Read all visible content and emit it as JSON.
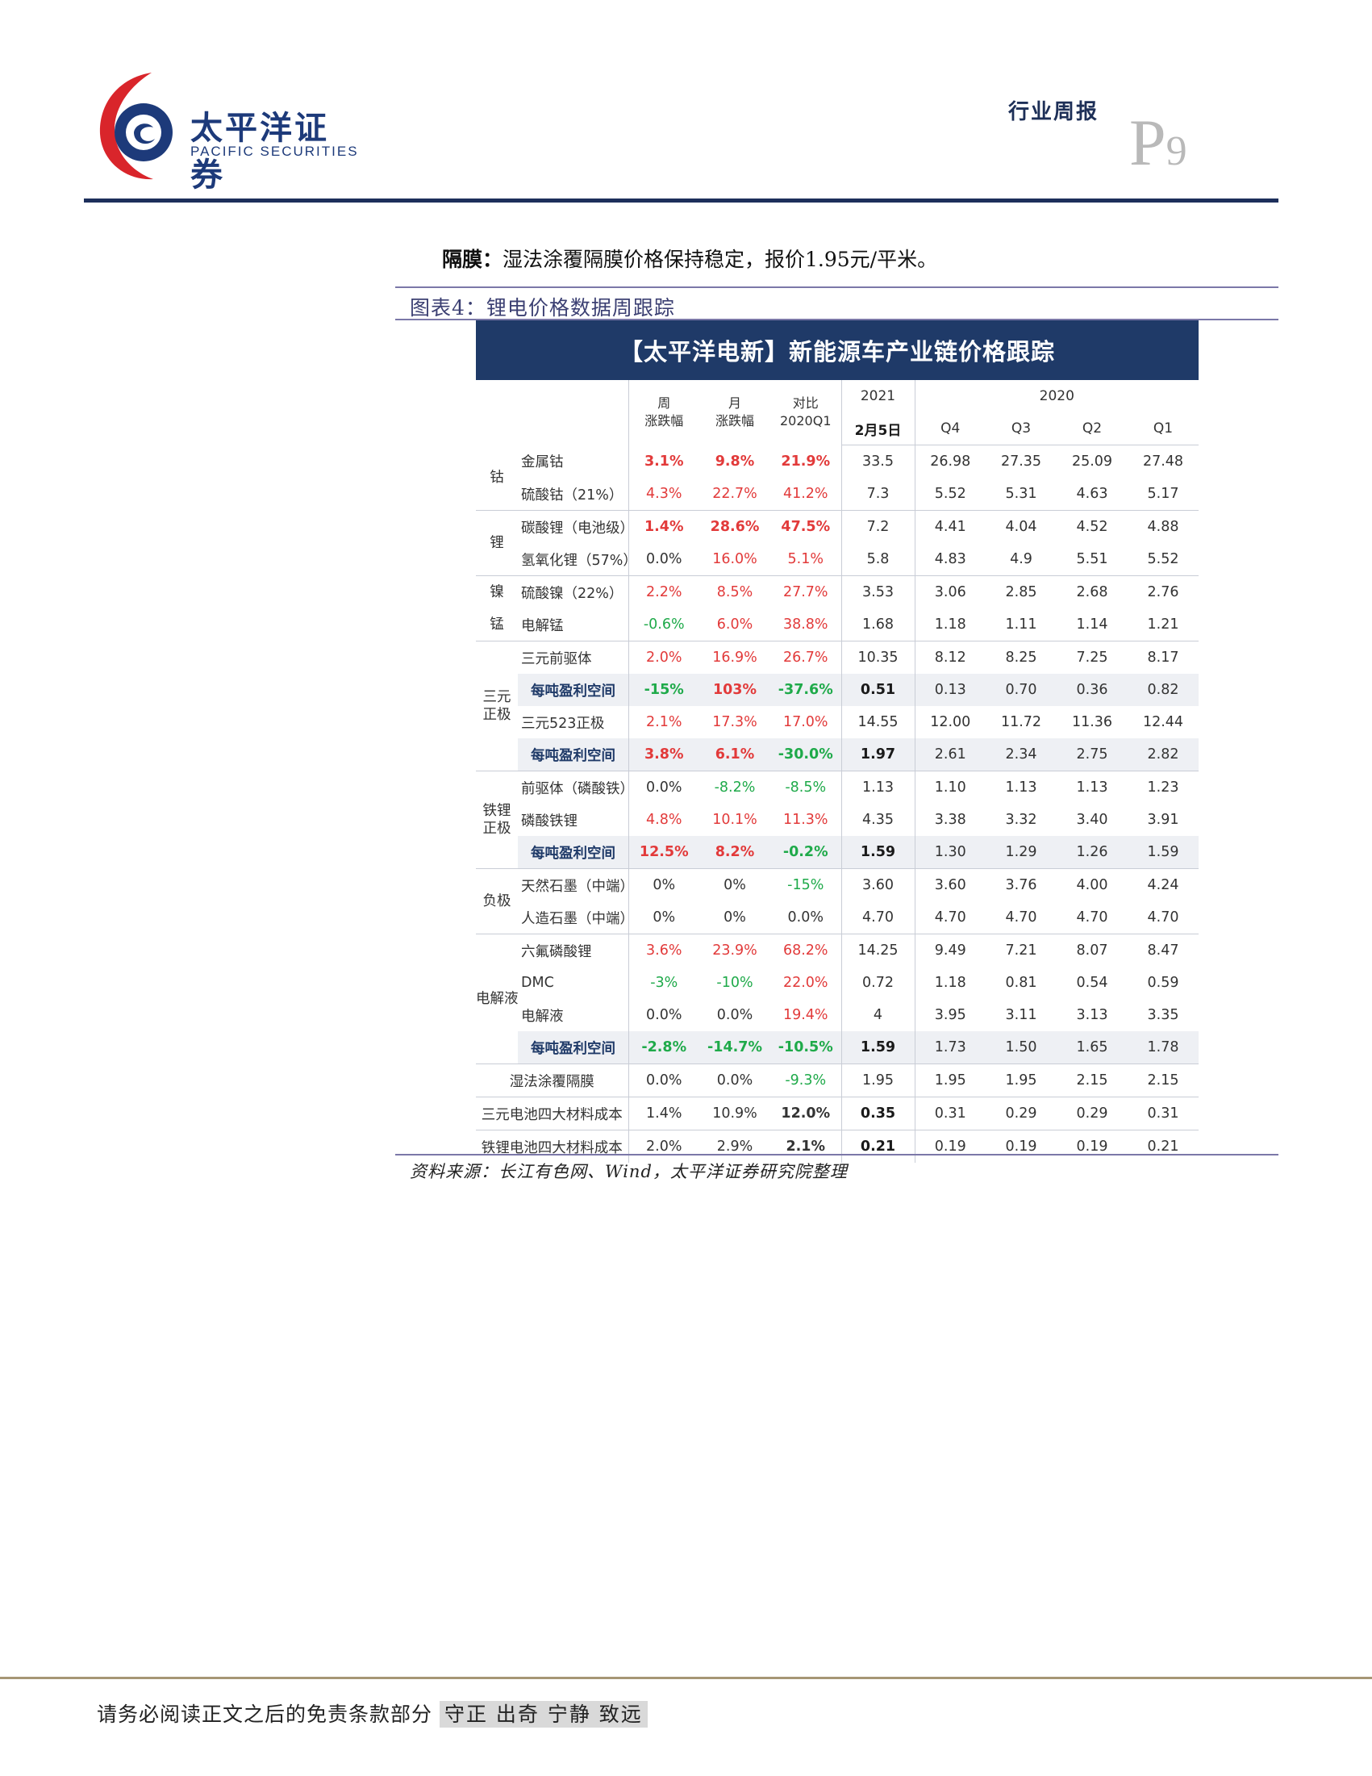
{
  "header": {
    "logo_cn": "太平洋证券",
    "logo_en": "PACIFIC SECURITIES",
    "report_type": "行业周报",
    "page_letter": "P",
    "page_number": "9"
  },
  "body": {
    "para_label": "隔膜：",
    "para_text": "湿法涂覆隔膜价格保持稳定，报价1.95元/平米。",
    "figure_title": "图表4：锂电价格数据周跟踪",
    "source": "资料来源：长江有色网、Wind，太平洋证券研究院整理"
  },
  "table": {
    "title": "【太平洋电新】新能源车产业链价格跟踪",
    "headers": {
      "week": "周\n涨跌幅",
      "month": "月\n涨跌幅",
      "vs": "对比\n2020Q1",
      "year2021": "2021",
      "date": "2月5日",
      "year2020": "2020",
      "q4": "Q4",
      "q3": "Q3",
      "q2": "Q2",
      "q1": "Q1"
    },
    "categories": {
      "cobalt": "钴",
      "lithium": "锂",
      "nickel": "镍",
      "manganese": "锰",
      "ternary": "三元\n正极",
      "lfp": "铁锂\n正极",
      "anode": "负极",
      "electrolyte": "电解液"
    },
    "rows": [
      {
        "name": "金属钴",
        "week": "3.1%",
        "month": "9.8%",
        "vs": "21.9%",
        "cur": "33.5",
        "q4": "26.98",
        "q3": "27.35",
        "q2": "25.09",
        "q1": "27.48"
      },
      {
        "name": "硫酸钴（21%）",
        "week": "4.3%",
        "month": "22.7%",
        "vs": "41.2%",
        "cur": "7.3",
        "q4": "5.52",
        "q3": "5.31",
        "q2": "4.63",
        "q1": "5.17"
      },
      {
        "name": "碳酸锂（电池级）",
        "week": "1.4%",
        "month": "28.6%",
        "vs": "47.5%",
        "cur": "7.2",
        "q4": "4.41",
        "q3": "4.04",
        "q2": "4.52",
        "q1": "4.88"
      },
      {
        "name": "氢氧化锂（57%）",
        "week": "0.0%",
        "month": "16.0%",
        "vs": "5.1%",
        "cur": "5.8",
        "q4": "4.83",
        "q3": "4.9",
        "q2": "5.51",
        "q1": "5.52"
      },
      {
        "name": "硫酸镍（22%）",
        "week": "2.2%",
        "month": "8.5%",
        "vs": "27.7%",
        "cur": "3.53",
        "q4": "3.06",
        "q3": "2.85",
        "q2": "2.68",
        "q1": "2.76"
      },
      {
        "name": "电解锰",
        "week": "-0.6%",
        "month": "6.0%",
        "vs": "38.8%",
        "cur": "1.68",
        "q4": "1.18",
        "q3": "1.11",
        "q2": "1.14",
        "q1": "1.21"
      },
      {
        "name": "三元前驱体",
        "week": "2.0%",
        "month": "16.9%",
        "vs": "26.7%",
        "cur": "10.35",
        "q4": "8.12",
        "q3": "8.25",
        "q2": "7.25",
        "q1": "8.17"
      },
      {
        "name": "每吨盈利空间",
        "week": "-15%",
        "month": "103%",
        "vs": "-37.6%",
        "cur": "0.51",
        "q4": "0.13",
        "q3": "0.70",
        "q2": "0.36",
        "q1": "0.82"
      },
      {
        "name": "三元523正极",
        "week": "2.1%",
        "month": "17.3%",
        "vs": "17.0%",
        "cur": "14.55",
        "q4": "12.00",
        "q3": "11.72",
        "q2": "11.36",
        "q1": "12.44"
      },
      {
        "name": "每吨盈利空间",
        "week": "3.8%",
        "month": "6.1%",
        "vs": "-30.0%",
        "cur": "1.97",
        "q4": "2.61",
        "q3": "2.34",
        "q2": "2.75",
        "q1": "2.82"
      },
      {
        "name": "前驱体（磷酸铁）",
        "week": "0.0%",
        "month": "-8.2%",
        "vs": "-8.5%",
        "cur": "1.13",
        "q4": "1.10",
        "q3": "1.13",
        "q2": "1.13",
        "q1": "1.23"
      },
      {
        "name": "磷酸铁锂",
        "week": "4.8%",
        "month": "10.1%",
        "vs": "11.3%",
        "cur": "4.35",
        "q4": "3.38",
        "q3": "3.32",
        "q2": "3.40",
        "q1": "3.91"
      },
      {
        "name": "每吨盈利空间",
        "week": "12.5%",
        "month": "8.2%",
        "vs": "-0.2%",
        "cur": "1.59",
        "q4": "1.30",
        "q3": "1.29",
        "q2": "1.26",
        "q1": "1.59"
      },
      {
        "name": "天然石墨（中端）",
        "week": "0%",
        "month": "0%",
        "vs": "-15%",
        "cur": "3.60",
        "q4": "3.60",
        "q3": "3.76",
        "q2": "4.00",
        "q1": "4.24"
      },
      {
        "name": "人造石墨（中端）",
        "week": "0%",
        "month": "0%",
        "vs": "0.0%",
        "cur": "4.70",
        "q4": "4.70",
        "q3": "4.70",
        "q2": "4.70",
        "q1": "4.70"
      },
      {
        "name": "六氟磷酸锂",
        "week": "3.6%",
        "month": "23.9%",
        "vs": "68.2%",
        "cur": "14.25",
        "q4": "9.49",
        "q3": "7.21",
        "q2": "8.07",
        "q1": "8.47"
      },
      {
        "name": "DMC",
        "week": "-3%",
        "month": "-10%",
        "vs": "22.0%",
        "cur": "0.72",
        "q4": "1.18",
        "q3": "0.81",
        "q2": "0.54",
        "q1": "0.59"
      },
      {
        "name": "电解液",
        "week": "0.0%",
        "month": "0.0%",
        "vs": "19.4%",
        "cur": "4",
        "q4": "3.95",
        "q3": "3.11",
        "q2": "3.13",
        "q1": "3.35"
      },
      {
        "name": "每吨盈利空间",
        "week": "-2.8%",
        "month": "-14.7%",
        "vs": "-10.5%",
        "cur": "1.59",
        "q4": "1.73",
        "q3": "1.50",
        "q2": "1.65",
        "q1": "1.78"
      },
      {
        "name": "湿法涂覆隔膜",
        "week": "0.0%",
        "month": "0.0%",
        "vs": "-9.3%",
        "cur": "1.95",
        "q4": "1.95",
        "q3": "1.95",
        "q2": "2.15",
        "q1": "2.15"
      },
      {
        "name": "三元电池四大材料成本",
        "week": "1.4%",
        "month": "10.9%",
        "vs": "12.0%",
        "cur": "0.35",
        "q4": "0.31",
        "q3": "0.29",
        "q2": "0.29",
        "q1": "0.31"
      },
      {
        "name": "铁锂电池四大材料成本",
        "week": "2.0%",
        "month": "2.9%",
        "vs": "2.1%",
        "cur": "0.21",
        "q4": "0.19",
        "q3": "0.19",
        "q2": "0.19",
        "q1": "0.21"
      }
    ],
    "colors": {
      "up": "#e23a3a",
      "down": "#1faa4a",
      "title_bg": "#1f3a68"
    }
  },
  "footer": {
    "disclaimer": "请务必阅读正文之后的免责条款部分",
    "motto": "守正 出奇 宁静 致远"
  }
}
